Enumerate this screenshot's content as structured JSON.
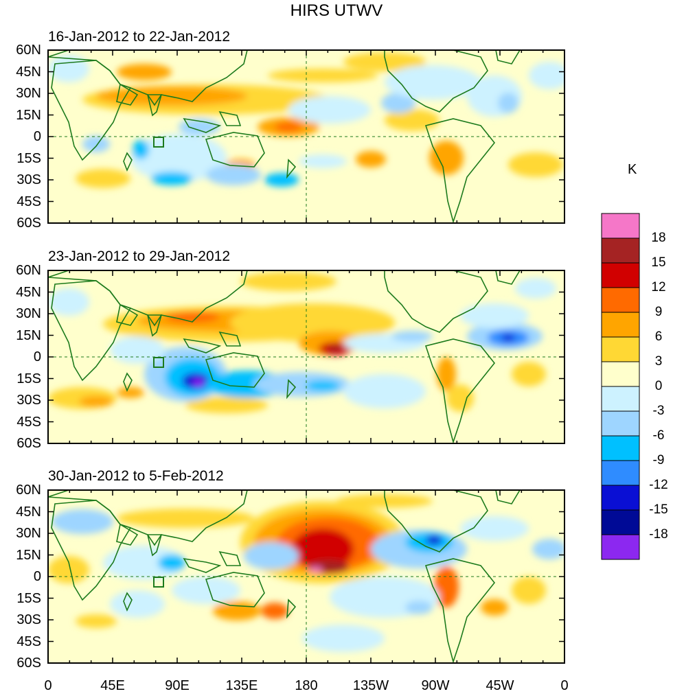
{
  "title": "HIRS UTWV",
  "units": "K",
  "panels": [
    {
      "title": "16-Jan-2012 to 22-Jan-2012"
    },
    {
      "title": "23-Jan-2012 to 29-Jan-2012"
    },
    {
      "title": "30-Jan-2012 to 5-Feb-2012"
    }
  ],
  "lat_labels": [
    "60N",
    "45N",
    "30N",
    "15N",
    "0",
    "15S",
    "30S",
    "45S",
    "60S"
  ],
  "lon_labels": [
    "0",
    "45E",
    "90E",
    "135E",
    "180",
    "135W",
    "90W",
    "45W",
    "0"
  ],
  "colorbar": {
    "labels": [
      "18",
      "15",
      "12",
      "9",
      "6",
      "3",
      "0",
      "-3",
      "-6",
      "-9",
      "-12",
      "-15",
      "-18"
    ],
    "colors": [
      "#f577c8",
      "#a52323",
      "#d10000",
      "#ff6a00",
      "#ffa500",
      "#ffd834",
      "#ffffcc",
      "#cdf2ff",
      "#9ed5ff",
      "#00c0ff",
      "#2f8cff",
      "#0a0fd4",
      "#000a96",
      "#8c28f0"
    ]
  },
  "coast_color": "#1c7a1c"
}
